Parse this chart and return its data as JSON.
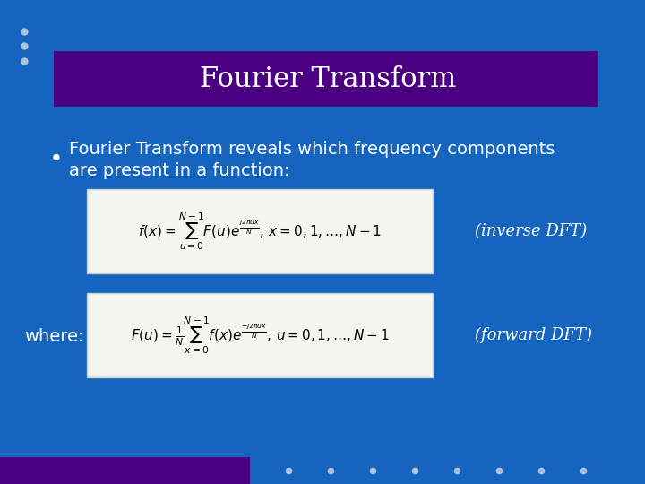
{
  "bg_color": "#1565C0",
  "title_bg_color": "#4B0082",
  "title_text": "Fourier Transform",
  "title_color": "#FFFFFF",
  "title_fontsize": 22,
  "bullet_text_line1": "Fourier Transform reveals which frequency components",
  "bullet_text_line2": "are present in a function:",
  "bullet_color": "#FFFFFF",
  "bullet_fontsize": 14,
  "formula1": "$f(x) = \\sum_{u=0}^{N-1} F(u)e^{\\frac{j2\\pi ux}{N}},\\, x = 0, 1, \\ldots, N-1$",
  "formula2": "$F(u) = \\frac{1}{N}\\sum_{x=0}^{N-1} f(x)e^{\\frac{-j2\\pi ux}{N}},\\, u = 0, 1, \\ldots, N-1$",
  "formula_bg": "#F5F5F0",
  "formula_border": "#CCCCCC",
  "label1": "(inverse DFT)",
  "label2": "(forward DFT)",
  "label_color": "#FFFFFF",
  "label_fontsize": 13,
  "where_text": "where:",
  "where_color": "#FFFFFF",
  "where_fontsize": 14,
  "dots_color": "#B0C4DE",
  "footer_purple_color": "#4B0082",
  "header_dots_color": "#B0C4DE"
}
